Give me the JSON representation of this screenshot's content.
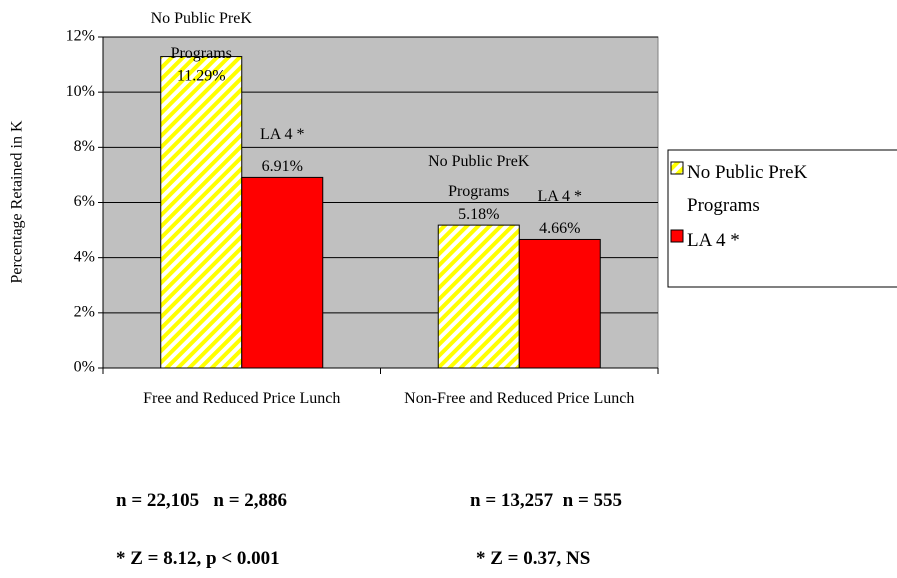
{
  "chart_data": {
    "type": "bar",
    "y_label": "Percentage Retained in K",
    "categories": [
      "Free and Reduced Price Lunch",
      "Non-Free and Reduced Price Lunch"
    ],
    "series": [
      {
        "name": "No Public PreK Programs",
        "color": "#ffff00",
        "pattern": "hatch",
        "values": [
          11.29,
          5.18
        ],
        "value_labels": [
          "11.29%",
          "5.18%"
        ]
      },
      {
        "name": "LA 4 *",
        "color": "#ff0000",
        "values": [
          6.91,
          4.66
        ],
        "value_labels": [
          "6.91%",
          "4.66%"
        ]
      }
    ],
    "ylim": [
      0,
      12
    ],
    "yticks": [
      {
        "value": 0,
        "label": "0%"
      },
      {
        "value": 2,
        "label": "2%"
      },
      {
        "value": 4,
        "label": "4%"
      },
      {
        "value": 6,
        "label": "6%"
      },
      {
        "value": 8,
        "label": "8%"
      },
      {
        "value": 10,
        "label": "10%"
      },
      {
        "value": 12,
        "label": "12%"
      }
    ],
    "grid": true,
    "plot_background": "#c0c0c0",
    "legend": "right",
    "annotations": [
      "n = 22,105   n = 2,886",
      "n = 13,257  n = 555",
      "* Z = 8.12, p < 0.001",
      "* Z = 0.37, NS"
    ]
  }
}
